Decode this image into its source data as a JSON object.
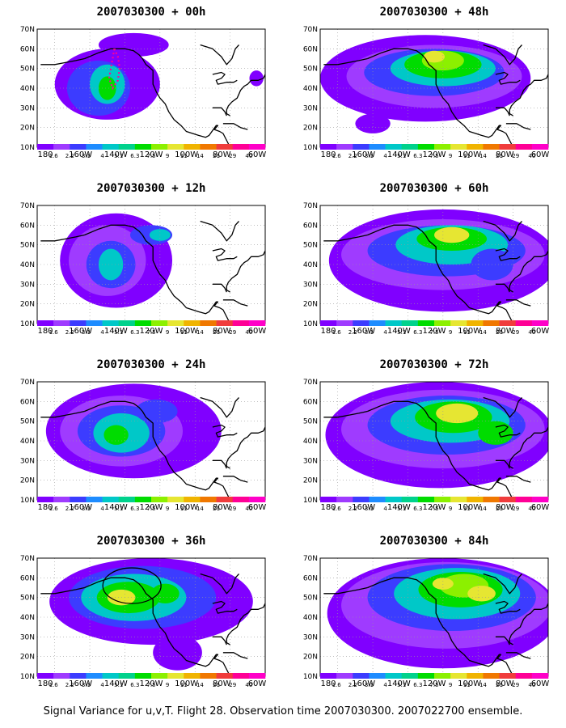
{
  "caption": "Signal Variance for u,v,T. Flight 28. Observation time 2007030300. 2007022700 ensemble.",
  "lat_labels": [
    "70N",
    "60N",
    "50N",
    "40N",
    "30N",
    "20N",
    "10N"
  ],
  "lon_labels": [
    "180",
    "160W",
    "140W",
    "120W",
    "100W",
    "80W",
    "60W"
  ],
  "colorbar": {
    "labels": [
      "1.6",
      "2.2",
      "3.1",
      "4",
      "5.1",
      "6.3",
      "7.5",
      "9",
      "11",
      "14",
      "21",
      "29",
      "40"
    ],
    "colors": [
      "#8000ff",
      "#9f3bff",
      "#3c3cff",
      "#1e8cff",
      "#00c8c8",
      "#00d28c",
      "#00dc00",
      "#8cf000",
      "#e6e632",
      "#f0b400",
      "#f07800",
      "#f03c3c",
      "#ff0096",
      "#ff00c8"
    ]
  },
  "panels": [
    {
      "title": "2007030300 + 00h"
    },
    {
      "title": "2007030300 + 48h"
    },
    {
      "title": "2007030300 + 12h"
    },
    {
      "title": "2007030300 + 60h"
    },
    {
      "title": "2007030300 + 24h"
    },
    {
      "title": "2007030300 + 72h"
    },
    {
      "title": "2007030300 + 36h"
    },
    {
      "title": "2007030300 + 84h"
    }
  ]
}
